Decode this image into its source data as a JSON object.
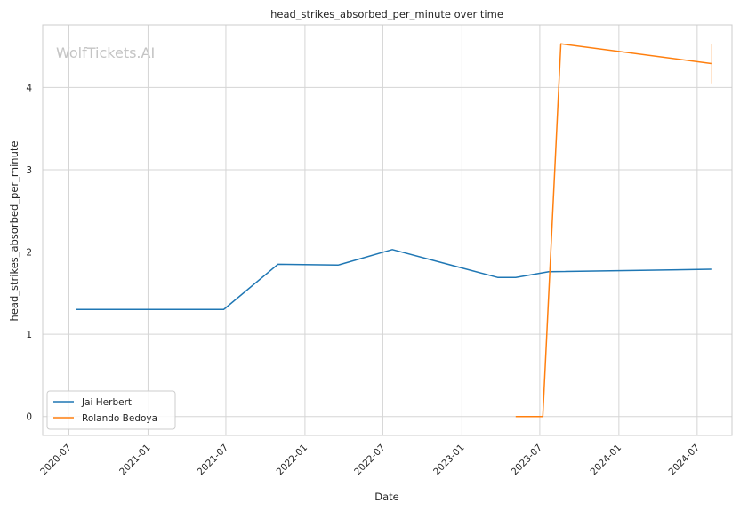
{
  "chart_data": {
    "type": "line",
    "title": "head_strikes_absorbed_per_minute over time",
    "xlabel": "Date",
    "ylabel": "head_strikes_absorbed_per_minute",
    "watermark": "WolfTickets.AI",
    "x_ticks": [
      "2020-07",
      "2021-01",
      "2021-07",
      "2022-01",
      "2022-07",
      "2023-01",
      "2023-07",
      "2024-01",
      "2024-07"
    ],
    "y_ticks": [
      "0",
      "1",
      "2",
      "3",
      "4"
    ],
    "xlim": [
      "2020-05-01",
      "2024-09-20"
    ],
    "ylim": [
      -0.23,
      4.76
    ],
    "grid": true,
    "legend_position": "bottom-left",
    "series": [
      {
        "name": "Jai Herbert",
        "color": "#1f77b4",
        "points": [
          {
            "x": "2020-07-18",
            "y": 1.3
          },
          {
            "x": "2021-06-26",
            "y": 1.3
          },
          {
            "x": "2021-10-30",
            "y": 1.85
          },
          {
            "x": "2022-03-19",
            "y": 1.84
          },
          {
            "x": "2022-07-23",
            "y": 2.03
          },
          {
            "x": "2023-03-25",
            "y": 1.69
          },
          {
            "x": "2023-05-06",
            "y": 1.69
          },
          {
            "x": "2023-07-22",
            "y": 1.76
          },
          {
            "x": "2024-08-03",
            "y": 1.79
          }
        ]
      },
      {
        "name": "Rolando Bedoya",
        "color": "#ff7f0e",
        "points": [
          {
            "x": "2023-05-06",
            "y": 0.0
          },
          {
            "x": "2023-07-08",
            "y": 0.0
          },
          {
            "x": "2023-08-19",
            "y": 4.53
          },
          {
            "x": "2024-08-03",
            "y": 4.29
          }
        ]
      }
    ]
  }
}
